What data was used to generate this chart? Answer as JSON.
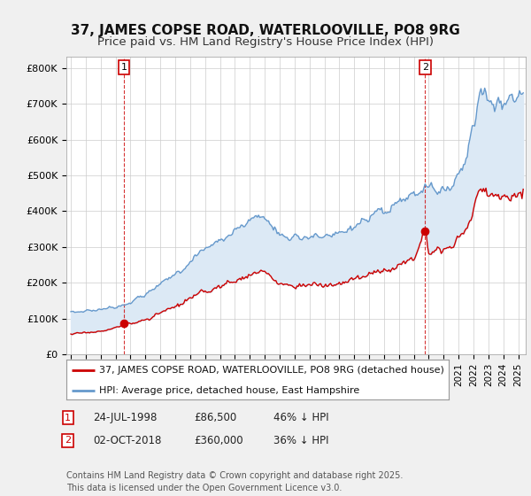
{
  "title": "37, JAMES COPSE ROAD, WATERLOOVILLE, PO8 9RG",
  "subtitle": "Price paid vs. HM Land Registry's House Price Index (HPI)",
  "ylabel_ticks": [
    "£0",
    "£100K",
    "£200K",
    "£300K",
    "£400K",
    "£500K",
    "£600K",
    "£700K",
    "£800K"
  ],
  "ytick_values": [
    0,
    100000,
    200000,
    300000,
    400000,
    500000,
    600000,
    700000,
    800000
  ],
  "ylim": [
    0,
    830000
  ],
  "xlim_start": 1994.7,
  "xlim_end": 2025.5,
  "legend_entries": [
    "37, JAMES COPSE ROAD, WATERLOOVILLE, PO8 9RG (detached house)",
    "HPI: Average price, detached house, East Hampshire"
  ],
  "line_colors": [
    "#cc0000",
    "#6699cc"
  ],
  "fill_color": "#dce9f5",
  "purchase1_date": 1998.56,
  "purchase1_price": 86500,
  "purchase2_date": 2018.75,
  "purchase2_price": 360000,
  "background_color": "#f0f0f0",
  "plot_bg_color": "#ffffff",
  "grid_color": "#cccccc",
  "title_fontsize": 11,
  "subtitle_fontsize": 9.5,
  "tick_fontsize": 8,
  "legend_fontsize": 8,
  "footer_fontsize": 7,
  "footer": "Contains HM Land Registry data © Crown copyright and database right 2025.\nThis data is licensed under the Open Government Licence v3.0."
}
